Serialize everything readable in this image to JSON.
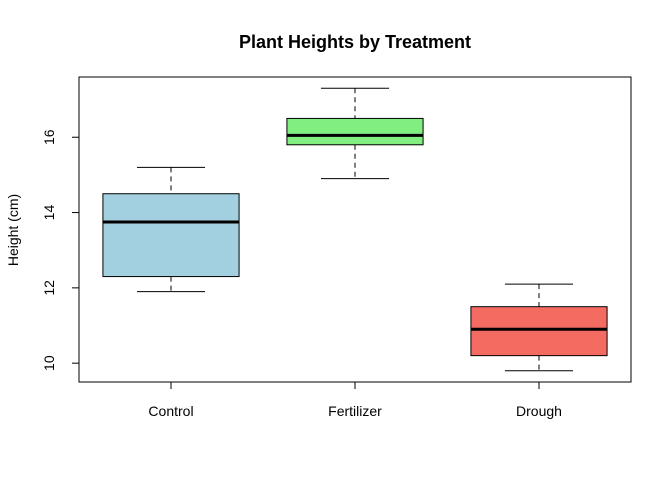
{
  "chart_data": {
    "type": "boxplot",
    "title": "Plant Heights by Treatment",
    "xlabel": "",
    "ylabel": "Height (cm)",
    "ylim": [
      9.5,
      17.6
    ],
    "yticks": [
      10,
      12,
      14,
      16
    ],
    "categories": [
      "Control",
      "Fertilizer",
      "Drough"
    ],
    "boxes": [
      {
        "name": "Control",
        "min": 11.9,
        "q1": 12.3,
        "median": 13.75,
        "q3": 14.5,
        "max": 15.2,
        "color": "#a2d0e0"
      },
      {
        "name": "Fertilizer",
        "min": 14.9,
        "q1": 15.8,
        "median": 16.05,
        "q3": 16.5,
        "max": 17.3,
        "color": "#80ee80"
      },
      {
        "name": "Drough",
        "min": 9.8,
        "q1": 10.2,
        "median": 10.9,
        "q3": 11.5,
        "max": 12.1,
        "color": "#f46b62"
      }
    ]
  }
}
